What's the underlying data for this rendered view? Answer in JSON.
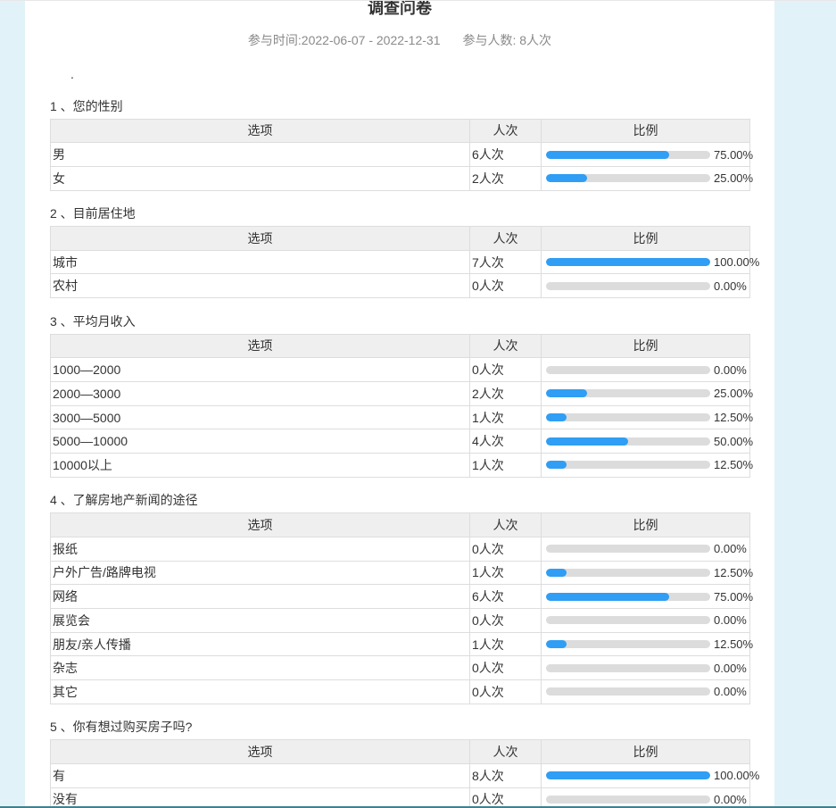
{
  "page": {
    "title": "调查问卷",
    "meta": {
      "time_label": "参与时间:2022-06-07 - 2022-12-31",
      "count_label": "参与人数: 8人次"
    },
    "description": ".",
    "table_headers": {
      "option": "选项",
      "count": "人次",
      "ratio": "比例"
    },
    "colors": {
      "page_background": "#e1f3f8",
      "card_background": "#ffffff",
      "bar_fill": "#2f9ef4",
      "bar_track": "#dcdcdc",
      "table_border": "#dddddd",
      "header_background": "#efefef",
      "bottom_bar": "#3f808f"
    }
  },
  "questions": [
    {
      "label": "1 、您的性别",
      "rows": [
        {
          "option": "男",
          "count": "6人次",
          "percent": 75,
          "percent_label": "75.00%"
        },
        {
          "option": "女",
          "count": "2人次",
          "percent": 25,
          "percent_label": "25.00%"
        }
      ]
    },
    {
      "label": "2 、目前居住地",
      "rows": [
        {
          "option": "城市",
          "count": "7人次",
          "percent": 100,
          "percent_label": "100.00%"
        },
        {
          "option": "农村",
          "count": "0人次",
          "percent": 0,
          "percent_label": "0.00%"
        }
      ]
    },
    {
      "label": "3 、平均月收入",
      "rows": [
        {
          "option": "1000—2000",
          "count": "0人次",
          "percent": 0,
          "percent_label": "0.00%"
        },
        {
          "option": "2000—3000",
          "count": "2人次",
          "percent": 25,
          "percent_label": "25.00%"
        },
        {
          "option": "3000—5000",
          "count": "1人次",
          "percent": 12.5,
          "percent_label": "12.50%"
        },
        {
          "option": "5000—10000",
          "count": "4人次",
          "percent": 50,
          "percent_label": "50.00%"
        },
        {
          "option": "10000以上",
          "count": "1人次",
          "percent": 12.5,
          "percent_label": "12.50%"
        }
      ]
    },
    {
      "label": "4 、了解房地产新闻的途径",
      "rows": [
        {
          "option": "报纸",
          "count": "0人次",
          "percent": 0,
          "percent_label": "0.00%"
        },
        {
          "option": "户外广告/路牌电视",
          "count": "1人次",
          "percent": 12.5,
          "percent_label": "12.50%"
        },
        {
          "option": "网络",
          "count": "6人次",
          "percent": 75,
          "percent_label": "75.00%"
        },
        {
          "option": "展览会",
          "count": "0人次",
          "percent": 0,
          "percent_label": "0.00%"
        },
        {
          "option": "朋友/亲人传播",
          "count": "1人次",
          "percent": 12.5,
          "percent_label": "12.50%"
        },
        {
          "option": "杂志",
          "count": "0人次",
          "percent": 0,
          "percent_label": "0.00%"
        },
        {
          "option": "其它",
          "count": "0人次",
          "percent": 0,
          "percent_label": "0.00%"
        }
      ]
    },
    {
      "label": "5 、你有想过购买房子吗?",
      "rows": [
        {
          "option": "有",
          "count": "8人次",
          "percent": 100,
          "percent_label": "100.00%"
        },
        {
          "option": "没有",
          "count": "0人次",
          "percent": 0,
          "percent_label": "0.00%"
        }
      ]
    }
  ]
}
